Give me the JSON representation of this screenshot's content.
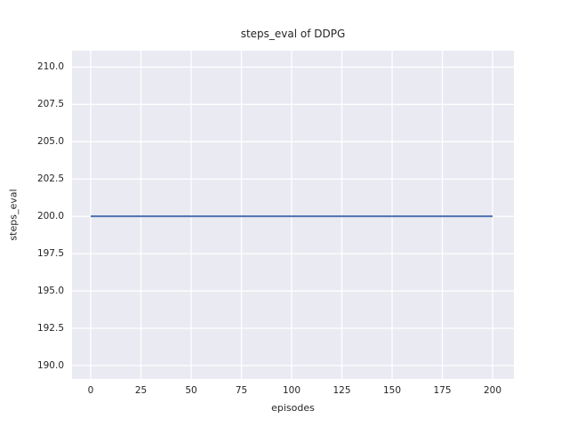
{
  "chart_data": {
    "type": "line",
    "title": "steps_eval of DDPG",
    "xlabel": "episodes",
    "ylabel": "steps_eval",
    "x_tick_values": [
      0,
      25,
      50,
      75,
      100,
      125,
      150,
      175,
      200
    ],
    "x_tick_labels": [
      "0",
      "25",
      "50",
      "75",
      "100",
      "125",
      "150",
      "175",
      "200"
    ],
    "y_tick_values": [
      190.0,
      192.5,
      195.0,
      197.5,
      200.0,
      202.5,
      205.0,
      207.5,
      210.0
    ],
    "y_tick_labels": [
      "190.0",
      "192.5",
      "195.0",
      "197.5",
      "200.0",
      "202.5",
      "205.0",
      "207.5",
      "210.0"
    ],
    "xlim": [
      -9.3,
      210.6
    ],
    "ylim": [
      189.1,
      211.1
    ],
    "grid": true,
    "legend_position": "none",
    "series": [
      {
        "name": "steps_eval",
        "x": [
          0,
          200
        ],
        "y": [
          200,
          200
        ],
        "color": "#4c72b0",
        "linewidth": 2
      }
    ]
  },
  "style": {
    "figure_bg": "#ffffff",
    "plot_bg": "#eaeaf2",
    "grid_color": "#ffffff",
    "text_color": "#262626",
    "accent": "#4c72b0"
  }
}
